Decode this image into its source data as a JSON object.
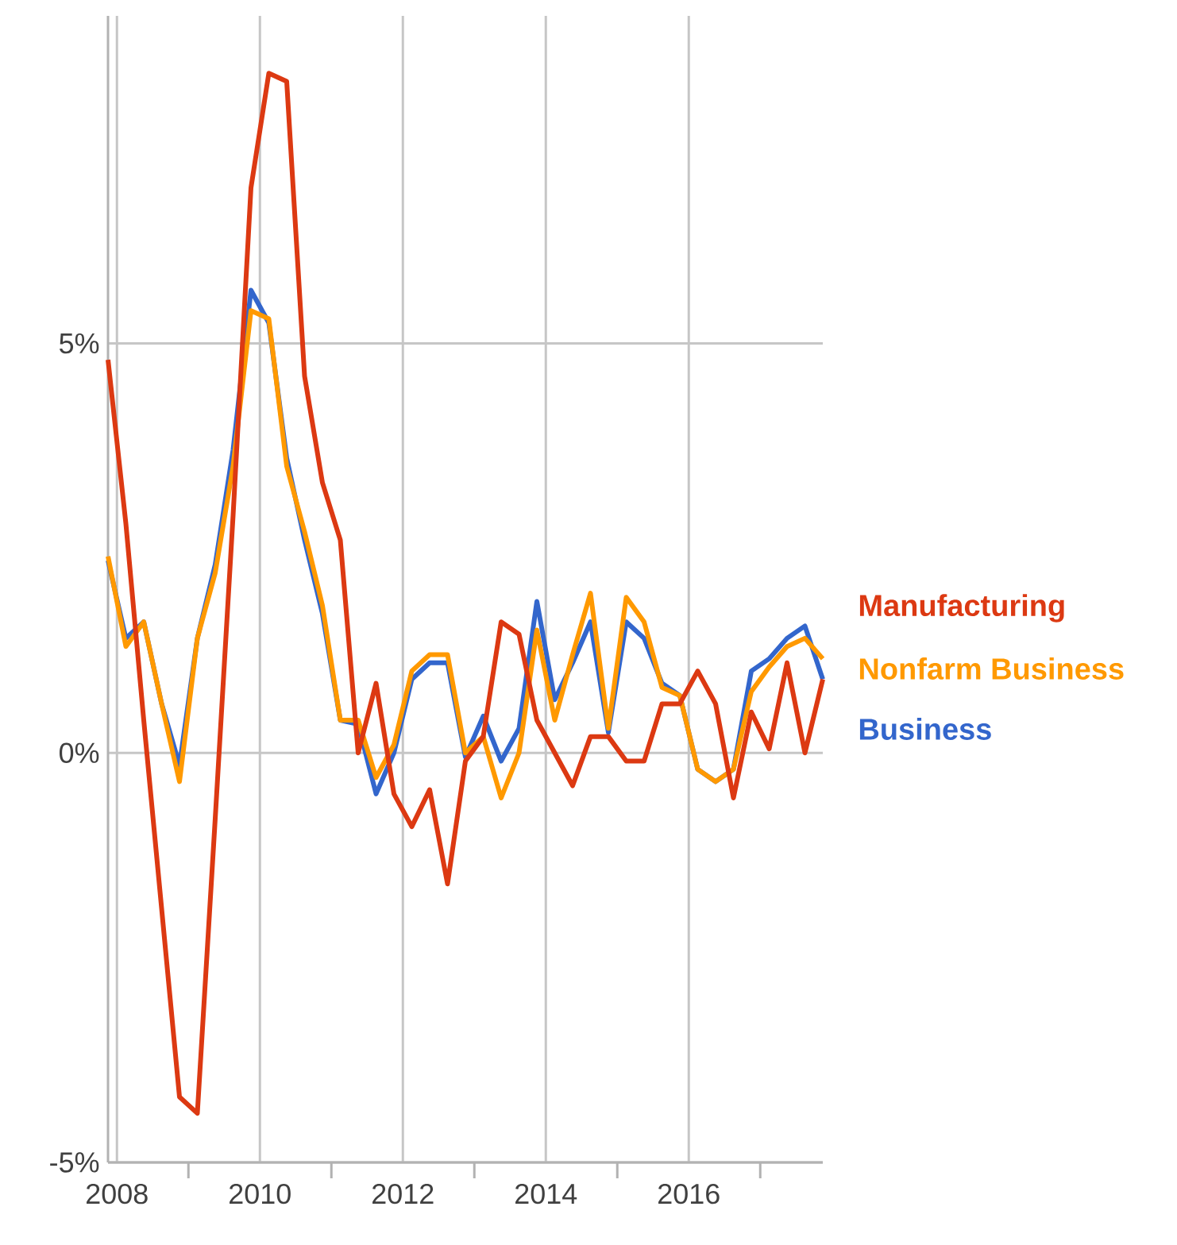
{
  "chart_data": {
    "type": "line",
    "x": [
      2007.875,
      2008.125,
      2008.375,
      2008.625,
      2008.875,
      2009.125,
      2009.375,
      2009.625,
      2009.875,
      2010.125,
      2010.375,
      2010.625,
      2010.875,
      2011.125,
      2011.375,
      2011.625,
      2011.875,
      2012.125,
      2012.375,
      2012.625,
      2012.875,
      2013.125,
      2013.375,
      2013.625,
      2013.875,
      2014.125,
      2014.375,
      2014.625,
      2014.875,
      2015.125,
      2015.375,
      2015.625,
      2015.875,
      2016.125,
      2016.375,
      2016.625,
      2016.875,
      2017.125,
      2017.375,
      2017.625,
      2017.875
    ],
    "series": [
      {
        "name": "Manufacturing",
        "color": "#dc3912",
        "values": [
          4.8,
          2.8,
          0.4,
          -1.9,
          -4.2,
          -4.4,
          -0.8,
          2.9,
          6.9,
          8.3,
          8.2,
          4.6,
          3.3,
          2.6,
          0.0,
          0.85,
          -0.5,
          -0.9,
          -0.45,
          -1.6,
          -0.1,
          0.2,
          1.6,
          1.45,
          0.4,
          0.0,
          -0.4,
          0.2,
          0.2,
          -0.1,
          -0.1,
          0.6,
          0.6,
          1.0,
          0.6,
          -0.55,
          0.5,
          0.05,
          1.1,
          0.0,
          0.9
        ]
      },
      {
        "name": "Nonfarm Business",
        "color": "#ff9900",
        "values": [
          2.4,
          1.3,
          1.6,
          0.6,
          -0.35,
          1.4,
          2.2,
          3.5,
          5.4,
          5.3,
          3.5,
          2.7,
          1.8,
          0.4,
          0.4,
          -0.3,
          0.1,
          1.0,
          1.2,
          1.2,
          0.0,
          0.2,
          -0.55,
          0.0,
          1.5,
          0.4,
          1.2,
          1.95,
          0.3,
          1.9,
          1.6,
          0.8,
          0.7,
          -0.2,
          -0.35,
          -0.2,
          0.75,
          1.05,
          1.3,
          1.4,
          1.15
        ]
      },
      {
        "name": "Business",
        "color": "#3366cc",
        "values": [
          2.35,
          1.4,
          1.6,
          0.6,
          -0.15,
          1.4,
          2.3,
          3.7,
          5.65,
          5.25,
          3.6,
          2.6,
          1.7,
          0.4,
          0.35,
          -0.5,
          0.0,
          0.9,
          1.1,
          1.1,
          -0.05,
          0.45,
          -0.1,
          0.3,
          1.85,
          0.65,
          1.1,
          1.6,
          0.25,
          1.6,
          1.4,
          0.85,
          0.7,
          -0.2,
          -0.35,
          -0.2,
          1.0,
          1.15,
          1.4,
          1.55,
          0.9
        ]
      }
    ],
    "xlim": [
      2007.875,
      2017.875
    ],
    "xticks": [
      2008,
      {
        "value": 2009,
        "label": null
      },
      2010,
      {
        "value": 2011,
        "label": null
      },
      2012,
      {
        "value": 2013,
        "label": null
      },
      2014,
      {
        "value": 2015,
        "label": null
      },
      2016,
      {
        "value": 2017,
        "label": null
      }
    ],
    "ylim": [
      -5,
      9
    ],
    "yticks": [
      {
        "value": -5,
        "label": "-5%"
      },
      {
        "value": 0,
        "label": "0%"
      },
      {
        "value": 5,
        "label": "5%"
      }
    ],
    "grid": true,
    "legend": "right"
  }
}
